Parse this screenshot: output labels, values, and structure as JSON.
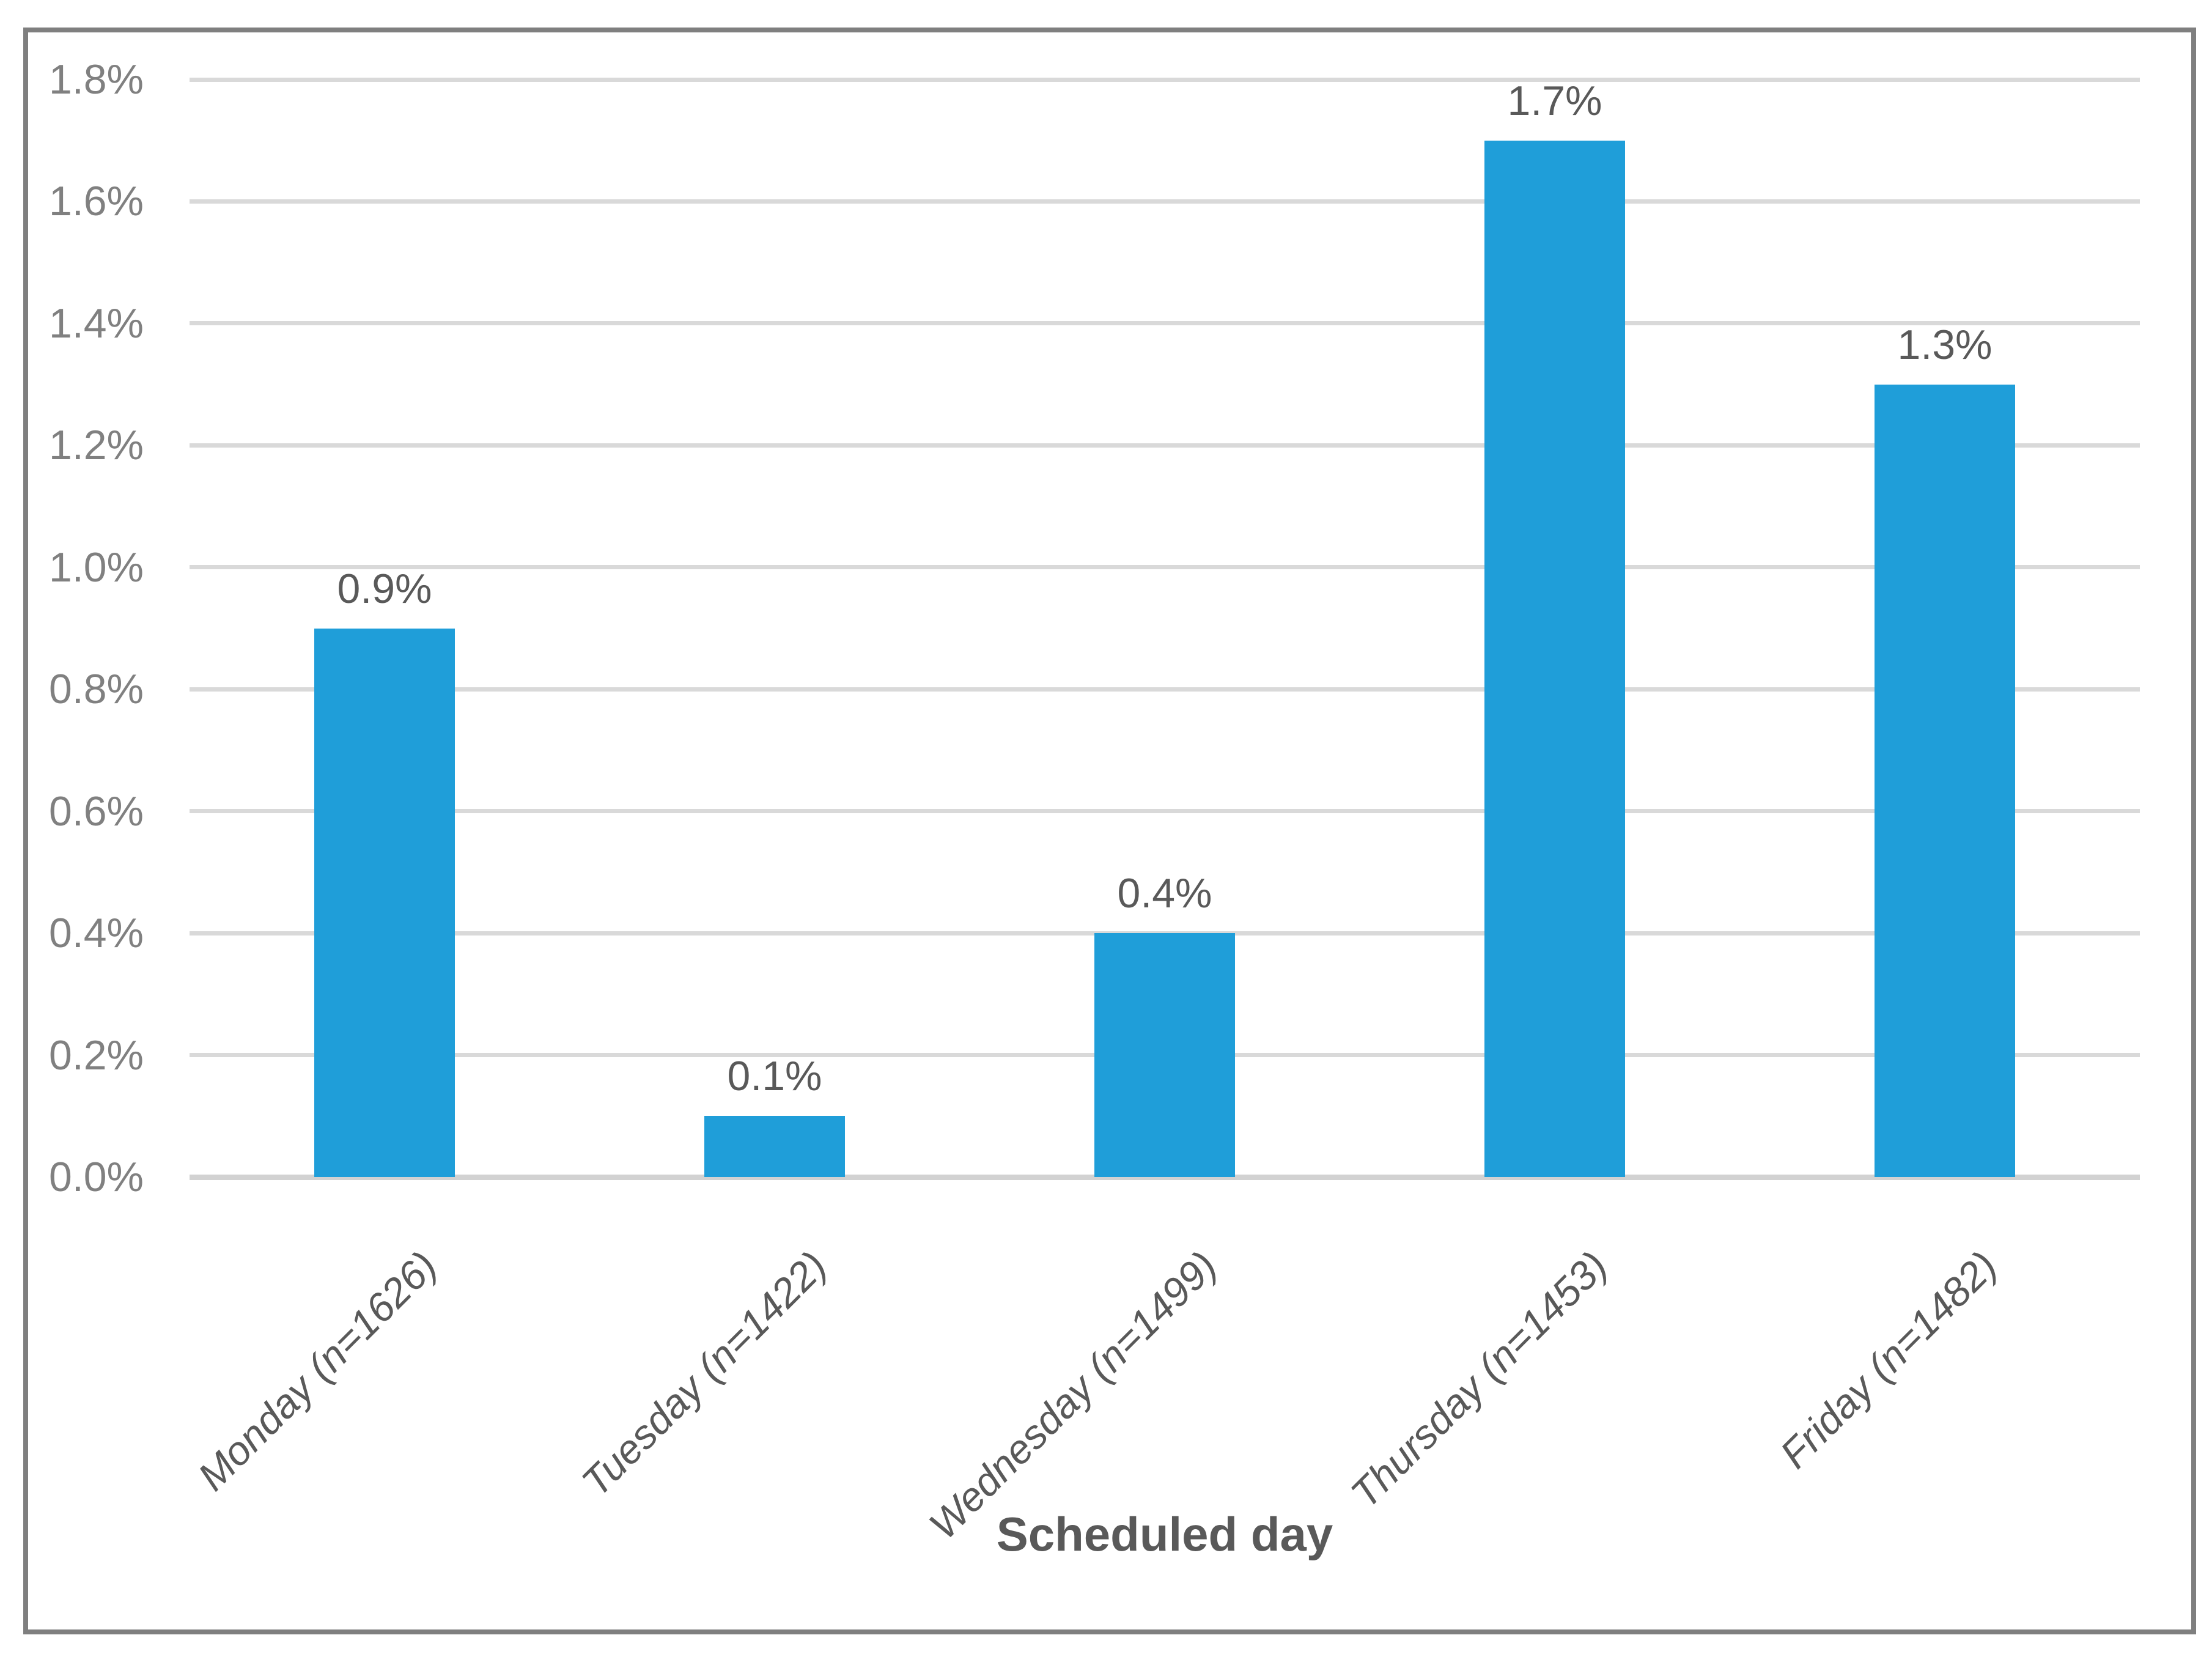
{
  "chart_data": {
    "type": "bar",
    "title": "",
    "xlabel": "Scheduled day",
    "ylabel": "",
    "categories": [
      "Monday (n=1626)",
      "Tuesday (n=1422)",
      "Wednesday (n=1499)",
      "Thursday (n=1453)",
      "Friday (n=1482)"
    ],
    "values": [
      0.9,
      0.1,
      0.4,
      1.7,
      1.3
    ],
    "data_labels": [
      "0.9%",
      "0.1%",
      "0.4%",
      "1.7%",
      "1.3%"
    ],
    "y_ticks": [
      "0.0%",
      "0.2%",
      "0.4%",
      "0.6%",
      "0.8%",
      "1.0%",
      "1.2%",
      "1.4%",
      "1.6%",
      "1.8%"
    ],
    "ylim": [
      0,
      1.8
    ],
    "y_tick_step": 0.2,
    "grid": true,
    "legend": "none",
    "colors": {
      "bar": "#1F9ED9",
      "gridline": "#D9D9D9",
      "axis_line": "#D2D2D2",
      "frame_border": "#7F7F7F",
      "y_tick_text": "#808080",
      "x_tick_text": "#595959",
      "data_label_text": "#595959",
      "x_axis_title_text": "#595959",
      "background": "#FFFFFF"
    }
  }
}
